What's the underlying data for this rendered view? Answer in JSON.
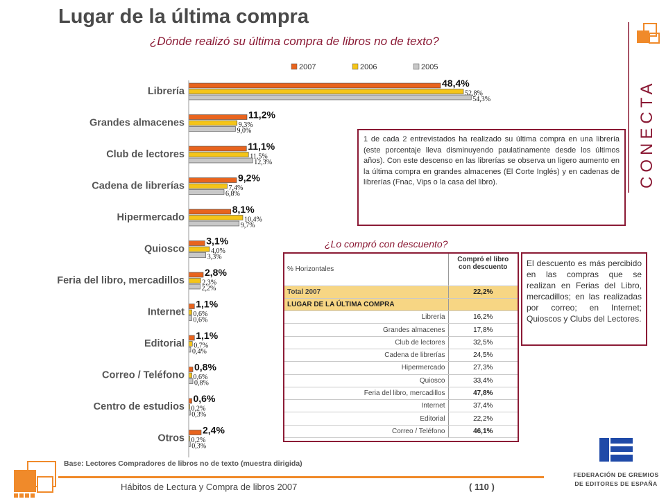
{
  "title": "Lugar de la última compra",
  "subtitle": "¿Dónde realizó su última compra de libros no de texto?",
  "chart_data": {
    "type": "bar",
    "orientation": "horizontal",
    "categories": [
      "Librería",
      "Grandes almacenes",
      "Club de lectores",
      "Cadena de librerías",
      "Hipermercado",
      "Quiosco",
      "Feria del libro, mercadillos",
      "Internet",
      "Editorial",
      "Correo / Teléfono",
      "Centro de estudios",
      "Otros"
    ],
    "series": [
      {
        "name": "2007",
        "color": "#e8641e",
        "values": [
          48.4,
          11.2,
          11.1,
          9.2,
          8.1,
          3.1,
          2.8,
          1.1,
          1.1,
          0.8,
          0.6,
          2.4
        ],
        "labels": [
          "48,4%",
          "11,2%",
          "11,1%",
          "9,2%",
          "8,1%",
          "3,1%",
          "2,8%",
          "1,1%",
          "1,1%",
          "0,8%",
          "0,6%",
          "2,4%"
        ]
      },
      {
        "name": "2006",
        "color": "#f5c518",
        "values": [
          52.8,
          9.3,
          11.5,
          7.4,
          10.4,
          4.0,
          2.3,
          0.6,
          0.7,
          0.6,
          0.2,
          0.2
        ],
        "labels": [
          "52,8%",
          "9,3%",
          "11,5%",
          "7,4%",
          "10,4%",
          "4,0%",
          "2,3%",
          "0,6%",
          "0,7%",
          "0,6%",
          "0,2%",
          "0,2%"
        ]
      },
      {
        "name": "2005",
        "color": "#c8c8c8",
        "values": [
          54.3,
          9.0,
          12.3,
          6.8,
          9.7,
          3.3,
          2.2,
          0.6,
          0.4,
          0.8,
          0.3,
          0.3
        ],
        "labels": [
          "54,3%",
          "9,0%",
          "12,3%",
          "6,8%",
          "9,7%",
          "3,3%",
          "2,2%",
          "0,6%",
          "0,4%",
          "0,8%",
          "0,3%",
          "0,3%"
        ]
      }
    ]
  },
  "note1": "1 de cada 2 entrevistados ha realizado su última compra en una librería (este porcentaje lleva disminuyendo paulatinamente desde los últimos años). Con este descenso en las librerías se observa un ligero aumento en la última compra en grandes almacenes (El Corte Inglés) y en cadenas de librerías (Fnac, Vips o la casa del libro).",
  "discount": {
    "question": "¿Lo compró con descuento?",
    "header_left": "% Horizontales",
    "header_right": "Compró el libro con descuento",
    "total_label": "Total 2007",
    "total_value": "22,2%",
    "section_label": "LUGAR DE LA ÚLTIMA COMPRA",
    "rows": [
      {
        "label": "Librería",
        "value": "16,2%"
      },
      {
        "label": "Grandes almacenes",
        "value": "17,8%"
      },
      {
        "label": "Club de lectores",
        "value": "32,5%"
      },
      {
        "label": "Cadena de librerías",
        "value": "24,5%"
      },
      {
        "label": "Hipermercado",
        "value": "27,3%"
      },
      {
        "label": "Quiosco",
        "value": "33,4%"
      },
      {
        "label": "Feria del libro, mercadillos",
        "value": "47,8%"
      },
      {
        "label": "Internet",
        "value": "37,4%"
      },
      {
        "label": "Editorial",
        "value": "22,2%"
      },
      {
        "label": "Correo / Teléfono",
        "value": "46,1%"
      }
    ]
  },
  "note2": "El descuento es más percibido en las compras que se realizan en Ferias del Libro, mercadillos; en las realizadas por correo; en Internet;  Quioscos y Clubs del Lectores.",
  "base": "Base: Lectores Compradores de libros no de texto (muestra dirigida)",
  "footer": "Hábitos de Lectura y Compra de libros 2007",
  "page": "( 110 )",
  "brand": {
    "conecta": "CONECTA",
    "federacion_line1": "FEDERACIÓN DE GREMIOS",
    "federacion_line2": "DE EDITORES DE ESPAÑA",
    "accent": "#8b1a35",
    "orange": "#f08a2a"
  }
}
